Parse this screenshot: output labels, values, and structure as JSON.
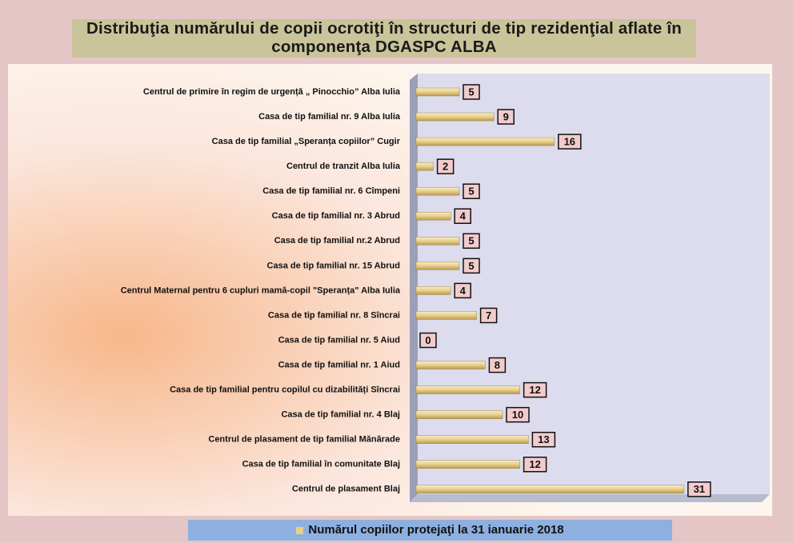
{
  "chart_data": {
    "type": "bar",
    "orientation": "horizontal",
    "title": "Distribuţia numărului de copii ocrotiţi în structuri de tip rezidenţial aflate în componenţa DGASPC ALBA",
    "categories": [
      "Centrul de primire în regim de urgență „ Pinocchio” Alba Iulia",
      "Casa de tip familial  nr. 9  Alba Iulia",
      "Casa de tip familial „Speranța copiilor” Cugir",
      "Centrul de tranzit Alba Iulia",
      "Casa de tip familial nr. 6 Cîmpeni",
      "Casa de tip familial nr. 3  Abrud",
      "Casa de tip familial nr.2 Abrud",
      "Casa de tip familial nr. 15 Abrud",
      "Centrul Maternal pentru 6 cupluri mamă-copil \"Speranța\" Alba Iulia",
      "Casa de tip familial nr. 8 Sîncrai",
      "Casa de tip familial nr. 5 Aiud",
      "Casa de tip familial nr. 1 Aiud",
      "Casa de tip familial pentru copilul cu dizabilități Sîncrai",
      "Casa de tip familial nr. 4 Blaj",
      "Centrul de plasament de tip familial Mănărade",
      "Casa de tip familial în comunitate Blaj",
      "Centrul de plasament Blaj"
    ],
    "series": [
      {
        "name": "Numărul copiilor protejaţi la 31 ianuarie 2018",
        "color": "#e8cf8a",
        "values": [
          5,
          9,
          16,
          2,
          5,
          4,
          5,
          5,
          4,
          7,
          0,
          8,
          12,
          10,
          13,
          12,
          31
        ]
      }
    ],
    "xlim": [
      0,
      40
    ]
  }
}
